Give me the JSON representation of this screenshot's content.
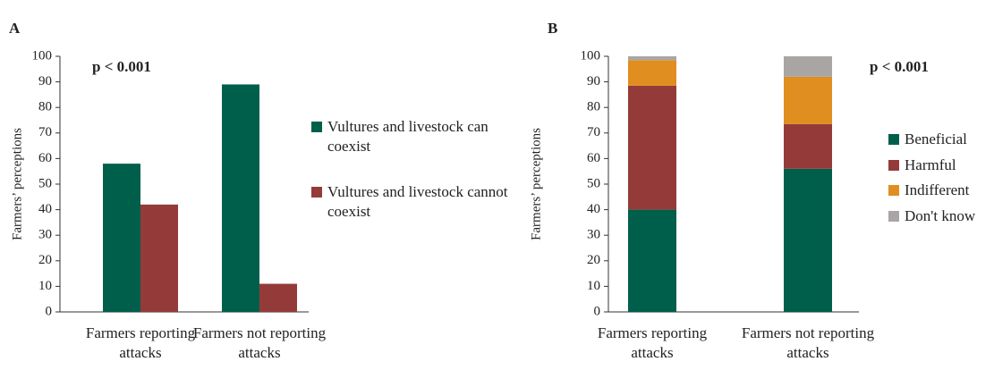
{
  "chart_data": [
    {
      "type": "bar",
      "panel_label": "A",
      "annotation": "p < 0.001",
      "y_label": "Farmers’ perceptions",
      "categories": [
        "Farmers reporting attacks",
        "Farmers not reporting attacks"
      ],
      "series": [
        {
          "name": "Vultures and livestock can coexist",
          "color": "#005f4b",
          "values": [
            58,
            89
          ]
        },
        {
          "name": "Vultures and livestock cannot coexist",
          "color": "#943b3a",
          "values": [
            42,
            11
          ]
        }
      ],
      "ylim": [
        0,
        100
      ],
      "yticks": [
        0,
        10,
        20,
        30,
        40,
        50,
        60,
        70,
        80,
        90,
        100
      ]
    },
    {
      "type": "stacked_bar",
      "panel_label": "B",
      "annotation": "p < 0.001",
      "y_label": "Farmers’ perceptions",
      "categories": [
        "Farmers reporting attacks",
        "Farmers not reporting attacks"
      ],
      "series": [
        {
          "name": "Beneficial",
          "color": "#005f4b",
          "values": [
            40,
            56
          ]
        },
        {
          "name": "Harmful",
          "color": "#943b3a",
          "values": [
            48.5,
            17.5
          ]
        },
        {
          "name": "Indifferent",
          "color": "#e08e1f",
          "values": [
            10,
            18.5
          ]
        },
        {
          "name": "Don't know",
          "color": "#aaa5a5",
          "values": [
            1.5,
            8
          ]
        }
      ],
      "ylim": [
        0,
        100
      ],
      "yticks": [
        0,
        10,
        20,
        30,
        40,
        50,
        60,
        70,
        80,
        90,
        100
      ]
    }
  ]
}
